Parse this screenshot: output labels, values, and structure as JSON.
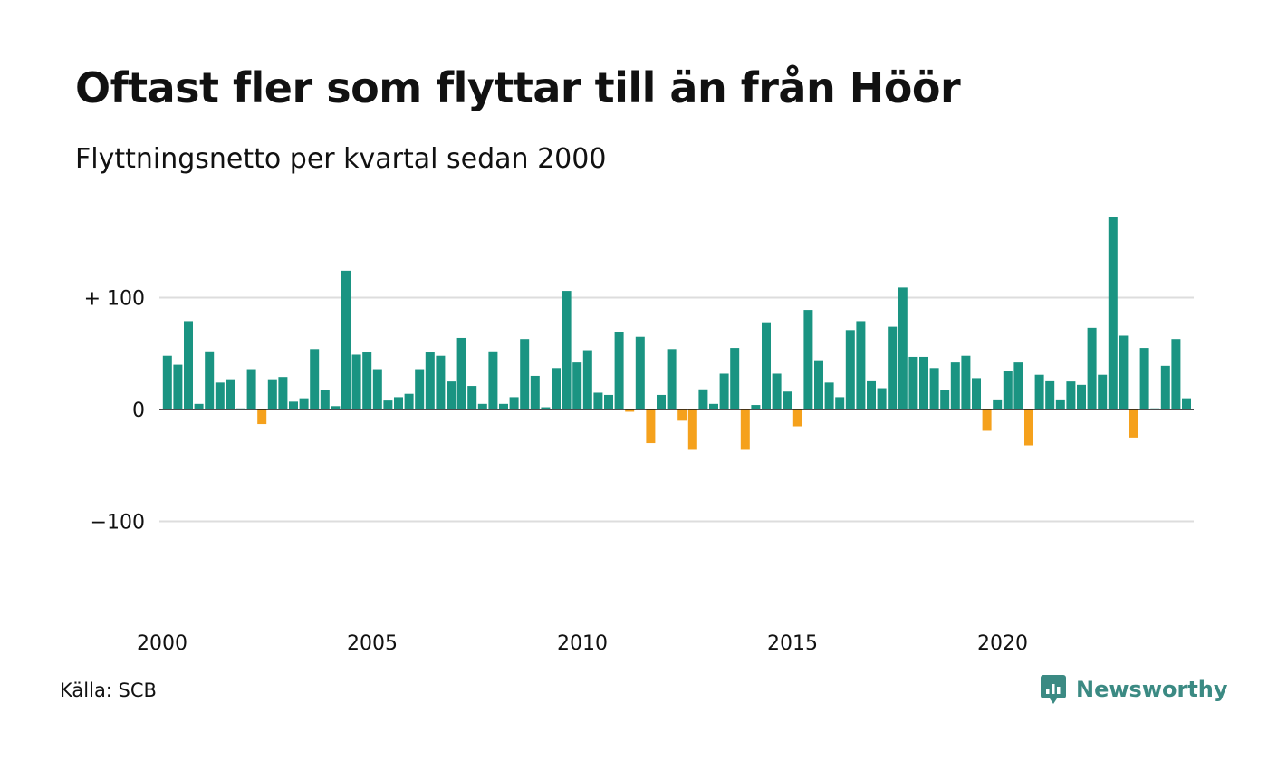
{
  "title": "Oftast fler som flyttar till än från Höör",
  "subtitle": "Flyttningsnetto per kvartal sedan 2000",
  "source": "Källa: SCB",
  "brand": {
    "name": "Newsworthy",
    "icon": "newsworthy-logo-icon"
  },
  "colors": {
    "positive": "#1a9482",
    "negative": "#f5a11c",
    "grid": "#dddddd",
    "brand": "#3b8a83"
  },
  "chart_data": {
    "type": "bar",
    "x_start": 2000,
    "quarters_per_year": 4,
    "ylim": [
      -190,
      180
    ],
    "y_ticks": [
      {
        "value": 100,
        "label": "+ 100"
      },
      {
        "value": 0,
        "label": "0"
      },
      {
        "value": -100,
        "label": "−100"
      }
    ],
    "x_ticks": [
      {
        "value": 2000,
        "label": "2000"
      },
      {
        "value": 2005,
        "label": "2005"
      },
      {
        "value": 2010,
        "label": "2010"
      },
      {
        "value": 2015,
        "label": "2015"
      },
      {
        "value": 2020,
        "label": "2020"
      }
    ],
    "grid": true,
    "series": [
      {
        "values": [
          48,
          40,
          79,
          5,
          52,
          24,
          27,
          1,
          36,
          -13,
          27,
          29,
          7,
          10,
          54,
          17,
          3,
          124,
          49,
          51,
          36,
          8,
          11,
          14,
          36,
          51,
          48,
          25,
          64,
          21,
          5,
          52,
          5,
          11,
          63,
          30,
          2,
          37,
          106,
          42,
          53,
          15,
          13,
          69,
          -2,
          65,
          -30,
          13,
          54,
          -10,
          -36,
          18,
          5,
          32,
          55,
          -36,
          4,
          78,
          32,
          16,
          -15,
          89,
          44,
          24,
          11,
          71,
          79,
          26,
          19,
          74,
          109,
          47,
          47,
          37,
          17,
          42,
          48,
          28,
          -19,
          9,
          34,
          42,
          -32,
          31,
          26,
          9,
          25,
          22,
          73,
          31,
          172,
          66,
          -25,
          55,
          1,
          39,
          63,
          10
        ]
      }
    ]
  }
}
